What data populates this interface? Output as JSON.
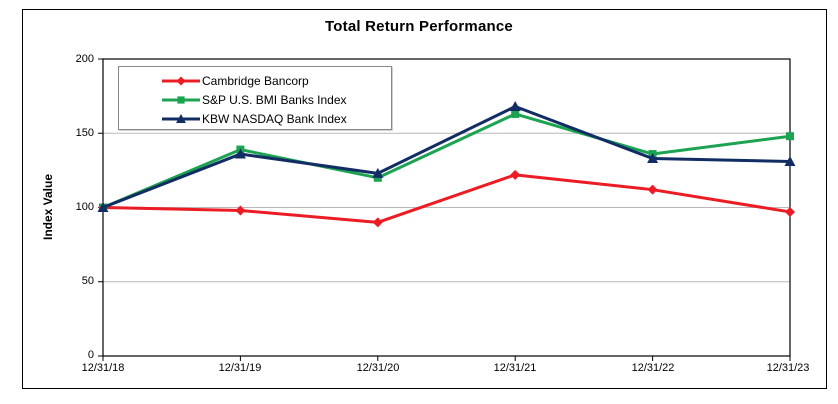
{
  "chart_data": {
    "type": "line",
    "title": "Total Return Performance",
    "ylabel": "Index Value",
    "xlabel": "",
    "ylim": [
      0,
      200
    ],
    "ytick_interval": 50,
    "ytick_labels": [
      "0",
      "50",
      "100",
      "150",
      "200"
    ],
    "categories": [
      "12/31/18",
      "12/31/19",
      "12/31/20",
      "12/31/21",
      "12/31/22",
      "12/31/23"
    ],
    "grid": "horizontal-gridlines-50-100-150",
    "legend_position": "inside-top-left",
    "colors": {
      "gridline": "#b8b8b8",
      "axis": "#000000",
      "legend_border": "#888888"
    },
    "series": [
      {
        "name": "Cambridge Bancorp",
        "color": "#EC1C24",
        "marker": "diamond",
        "values": [
          100,
          98,
          90,
          122,
          112,
          97
        ]
      },
      {
        "name": "S&P U.S. BMI Banks Index",
        "color": "#1CA351",
        "marker": "square",
        "values": [
          100,
          139,
          120,
          163,
          136,
          148
        ]
      },
      {
        "name": "KBW NASDAQ Bank Index",
        "color": "#122D64",
        "marker": "triangle",
        "values": [
          100,
          136,
          123,
          168,
          133,
          131
        ]
      }
    ]
  }
}
